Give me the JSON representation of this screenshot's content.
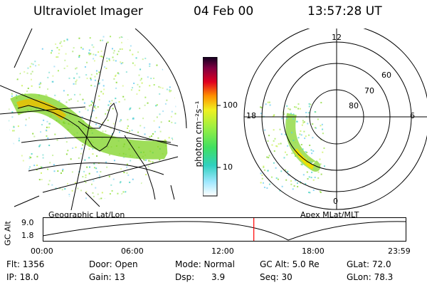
{
  "header": {
    "instrument": "Ultraviolet Imager",
    "date": "04 Feb 00",
    "time": "13:57:28 UT"
  },
  "colorbar": {
    "units": "photon cm⁻²s⁻¹",
    "ticks": [
      "100",
      "10"
    ]
  },
  "polar_plot": {
    "mlt_labels": {
      "top": "12",
      "left": "18",
      "right": "6",
      "bottom": "0"
    },
    "lat_labels": [
      "60",
      "70",
      "80"
    ]
  },
  "panel_labels": {
    "geographic": "Geographic Lat/Lon",
    "apex": "Apex  MLat/MLT"
  },
  "orbit_plot": {
    "ylabel": "GC Alt",
    "y_ticks": [
      "9.0",
      "1.8"
    ],
    "x_ticks": [
      "00:00",
      "06:00",
      "12:00",
      "18:00",
      "23:59"
    ],
    "current_time_hours": 13.96,
    "marker_color": "#ff0000"
  },
  "status": {
    "flt": "Flt: 1356",
    "ip": "IP: 18.0",
    "door": "Door: Open",
    "gain": "Gain: 13",
    "mode": "Mode: Normal",
    "dsp_label": "Dsp:",
    "dsp_value": "3.9",
    "gc_alt": "GC Alt: 5.0 Re",
    "seq": "Seq: 30",
    "glat": "GLat: 72.0",
    "glon": "GLon: 78.3"
  }
}
